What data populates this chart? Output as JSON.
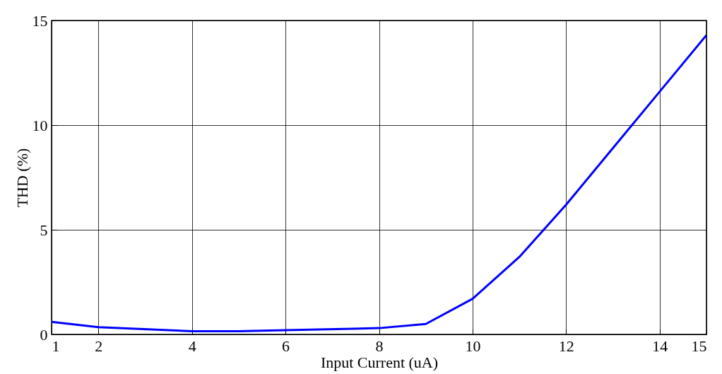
{
  "chart_data": {
    "type": "line",
    "xlabel": "Input Current (uA)",
    "ylabel": "THD (%)",
    "x": [
      1,
      2,
      4,
      5,
      6,
      8,
      9,
      10,
      11,
      12,
      13,
      14,
      15
    ],
    "series": [
      {
        "color": "#0000ff",
        "values": [
          0.6,
          0.35,
          0.15,
          0.15,
          0.2,
          0.3,
          0.5,
          1.7,
          3.7,
          6.2,
          8.9,
          11.6,
          14.3
        ]
      }
    ],
    "xlim": [
      1,
      15
    ],
    "xticks": [
      1,
      2,
      4,
      6,
      8,
      10,
      12,
      14,
      15
    ],
    "ylim": [
      0,
      15
    ],
    "yticks": [
      0,
      5,
      10,
      15
    ],
    "grid": true,
    "marker": "none",
    "line_style": "solid"
  }
}
